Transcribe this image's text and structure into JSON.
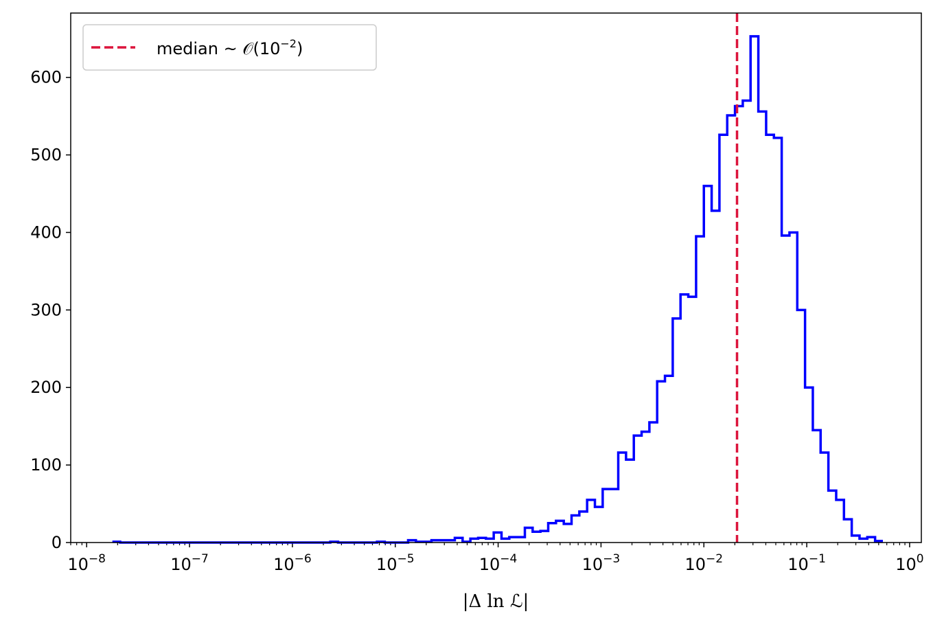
{
  "chart_data": {
    "type": "histogram",
    "x_scale": "log",
    "xlabel": "|Δ ln ℒ|",
    "ylabel": "",
    "xlim": [
      7e-09,
      1.3
    ],
    "ylim": [
      0,
      683
    ],
    "x_tick_base": "10",
    "x_ticks": [
      {
        "value": 1e-08,
        "exponent": "−8"
      },
      {
        "value": 1e-07,
        "exponent": "−7"
      },
      {
        "value": 1e-06,
        "exponent": "−6"
      },
      {
        "value": 1e-05,
        "exponent": "−5"
      },
      {
        "value": 0.0001,
        "exponent": "−4"
      },
      {
        "value": 0.001,
        "exponent": "−3"
      },
      {
        "value": 0.01,
        "exponent": "−2"
      },
      {
        "value": 0.1,
        "exponent": "−1"
      },
      {
        "value": 1,
        "exponent": "0"
      }
    ],
    "y_ticks": [
      {
        "value": 0,
        "label": "0"
      },
      {
        "value": 100,
        "label": "100"
      },
      {
        "value": 200,
        "label": "200"
      },
      {
        "value": 300,
        "label": "300"
      },
      {
        "value": 400,
        "label": "400"
      },
      {
        "value": 500,
        "label": "500"
      },
      {
        "value": 600,
        "label": "600"
      }
    ],
    "bins_log10_min": -7.75,
    "bins_log10_max": -0.26,
    "counts": [
      1,
      0,
      0,
      0,
      0,
      0,
      0,
      0,
      0,
      0,
      0,
      0,
      0,
      0,
      0,
      0,
      0,
      0,
      0,
      0,
      0,
      0,
      0,
      0,
      0,
      0,
      0,
      0,
      1,
      0,
      0,
      0,
      0,
      0,
      1,
      0,
      0,
      0,
      3,
      1,
      1,
      3,
      3,
      3,
      6,
      1,
      5,
      6,
      5,
      13,
      5,
      7,
      7,
      19,
      14,
      15,
      25,
      28,
      24,
      35,
      40,
      55,
      46,
      69,
      69,
      116,
      107,
      138,
      143,
      155,
      208,
      215,
      289,
      320,
      317,
      395,
      460,
      428,
      526,
      551,
      563,
      570,
      653,
      556,
      526,
      522,
      396,
      400,
      300,
      200,
      145,
      116,
      67,
      55,
      30,
      9,
      5,
      7,
      2
    ],
    "series": [
      {
        "name": "",
        "color": "#0000ff"
      }
    ],
    "median": {
      "value": 0.021,
      "color": "#dc143c",
      "legend_text": "median ~ 𝒪(10",
      "legend_sup": "−2",
      "legend_close": ")"
    },
    "legend_position": "top-left",
    "grid": false
  }
}
